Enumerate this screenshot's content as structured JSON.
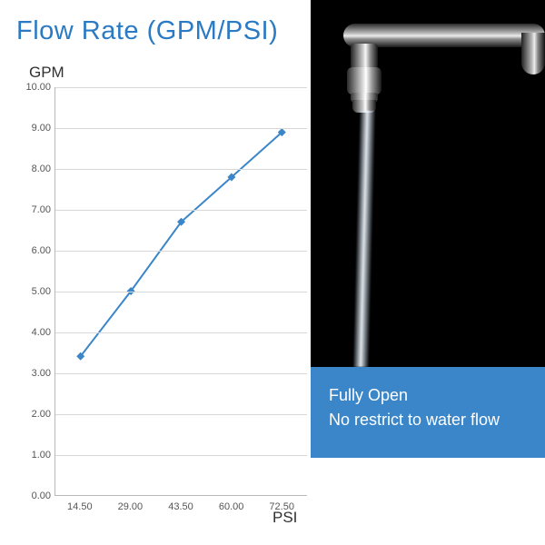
{
  "title": "Flow Rate (GPM/PSI)",
  "caption": {
    "line1": "Fully Open",
    "line2": "No restrict to water flow"
  },
  "chart": {
    "type": "line",
    "y_axis_label": "GPM",
    "x_axis_label": "PSI",
    "ylim": [
      0,
      10
    ],
    "ytick_step": 1,
    "y_decimals": 2,
    "x_categories": [
      "14.50",
      "29.00",
      "43.50",
      "60.00",
      "72.50"
    ],
    "values": [
      3.4,
      5.0,
      6.7,
      7.8,
      8.9
    ],
    "line_color": "#3a86c9",
    "marker_color": "#3a86c9",
    "marker_size": 4,
    "line_width": 2,
    "grid_color": "#d8d8d8",
    "axis_color": "#b8b8b8",
    "background_color": "#ffffff",
    "tick_fontsize": 11,
    "axis_label_fontsize": 17,
    "title_fontsize": 29,
    "title_color": "#2b7ac4"
  },
  "photo": {
    "background_color": "#000000"
  },
  "caption_panel": {
    "background_color": "#3a86c9",
    "text_color": "#ffffff",
    "fontsize": 18
  }
}
